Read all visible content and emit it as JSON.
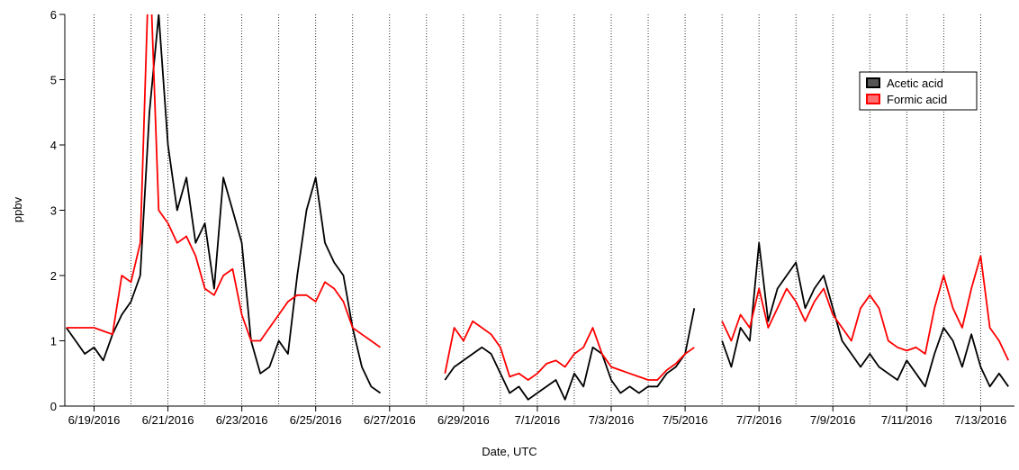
{
  "chart_data": {
    "type": "line",
    "xlabel": "Date, UTC",
    "ylabel": "ppbv",
    "x": [
      "2016-06-18T06:00",
      "2016-06-18T12:00",
      "2016-06-18T18:00",
      "2016-06-19T00:00",
      "2016-06-19T06:00",
      "2016-06-19T12:00",
      "2016-06-19T18:00",
      "2016-06-20T00:00",
      "2016-06-20T06:00",
      "2016-06-20T12:00",
      "2016-06-20T18:00",
      "2016-06-21T00:00",
      "2016-06-21T06:00",
      "2016-06-21T12:00",
      "2016-06-21T18:00",
      "2016-06-22T00:00",
      "2016-06-22T06:00",
      "2016-06-22T12:00",
      "2016-06-22T18:00",
      "2016-06-23T00:00",
      "2016-06-23T06:00",
      "2016-06-23T12:00",
      "2016-06-23T18:00",
      "2016-06-24T00:00",
      "2016-06-24T06:00",
      "2016-06-24T12:00",
      "2016-06-24T18:00",
      "2016-06-25T00:00",
      "2016-06-25T06:00",
      "2016-06-25T12:00",
      "2016-06-25T18:00",
      "2016-06-26T00:00",
      "2016-06-26T06:00",
      "2016-06-26T12:00",
      "2016-06-26T18:00",
      "2016-06-27T00:00",
      "2016-06-27T06:00",
      "2016-06-27T12:00",
      "2016-06-27T18:00",
      "2016-06-28T00:00",
      "2016-06-28T06:00",
      "2016-06-28T12:00",
      "2016-06-28T18:00",
      "2016-06-29T00:00",
      "2016-06-29T06:00",
      "2016-06-29T12:00",
      "2016-06-29T18:00",
      "2016-06-30T00:00",
      "2016-06-30T06:00",
      "2016-06-30T12:00",
      "2016-06-30T18:00",
      "2016-07-01T00:00",
      "2016-07-01T06:00",
      "2016-07-01T12:00",
      "2016-07-01T18:00",
      "2016-07-02T00:00",
      "2016-07-02T06:00",
      "2016-07-02T12:00",
      "2016-07-02T18:00",
      "2016-07-03T00:00",
      "2016-07-03T06:00",
      "2016-07-03T12:00",
      "2016-07-03T18:00",
      "2016-07-04T00:00",
      "2016-07-04T06:00",
      "2016-07-04T12:00",
      "2016-07-04T18:00",
      "2016-07-05T00:00",
      "2016-07-05T06:00",
      "2016-07-05T12:00",
      "2016-07-05T18:00",
      "2016-07-06T00:00",
      "2016-07-06T06:00",
      "2016-07-06T12:00",
      "2016-07-06T18:00",
      "2016-07-07T00:00",
      "2016-07-07T06:00",
      "2016-07-07T12:00",
      "2016-07-07T18:00",
      "2016-07-08T00:00",
      "2016-07-08T06:00",
      "2016-07-08T12:00",
      "2016-07-08T18:00",
      "2016-07-09T00:00",
      "2016-07-09T06:00",
      "2016-07-09T12:00",
      "2016-07-09T18:00",
      "2016-07-10T00:00",
      "2016-07-10T06:00",
      "2016-07-10T12:00",
      "2016-07-10T18:00",
      "2016-07-11T00:00",
      "2016-07-11T06:00",
      "2016-07-11T12:00",
      "2016-07-11T18:00",
      "2016-07-12T00:00",
      "2016-07-12T06:00",
      "2016-07-12T12:00",
      "2016-07-12T18:00",
      "2016-07-13T00:00",
      "2016-07-13T06:00",
      "2016-07-13T12:00",
      "2016-07-13T18:00"
    ],
    "series": [
      {
        "name": "Acetic acid",
        "color": "#000000",
        "legend_color": "#555555",
        "values": [
          1.2,
          1.0,
          0.8,
          0.9,
          0.7,
          1.1,
          1.4,
          1.6,
          2.0,
          4.5,
          6.0,
          4.0,
          3.0,
          3.5,
          2.5,
          2.8,
          1.8,
          3.5,
          3.0,
          2.5,
          1.0,
          0.5,
          0.6,
          1.0,
          0.8,
          2.0,
          3.0,
          3.5,
          2.5,
          2.2,
          2.0,
          1.2,
          0.6,
          0.3,
          0.2,
          null,
          null,
          null,
          null,
          null,
          null,
          0.4,
          0.6,
          0.7,
          0.8,
          0.9,
          0.8,
          0.5,
          0.2,
          0.3,
          0.1,
          0.2,
          0.3,
          0.4,
          0.1,
          0.5,
          0.3,
          0.9,
          0.8,
          0.4,
          0.2,
          0.3,
          0.2,
          0.3,
          0.3,
          0.5,
          0.6,
          0.8,
          1.5,
          null,
          null,
          1.0,
          0.6,
          1.2,
          1.0,
          2.5,
          1.3,
          1.8,
          2.0,
          2.2,
          1.5,
          1.8,
          2.0,
          1.5,
          1.0,
          0.8,
          0.6,
          0.8,
          0.6,
          0.5,
          0.4,
          0.7,
          0.5,
          0.3,
          0.8,
          1.2,
          1.0,
          0.6,
          1.1,
          0.6,
          0.3,
          0.5,
          0.3
        ]
      },
      {
        "name": "Formic acid",
        "color": "#ff0000",
        "legend_color": "#ff7070",
        "values": [
          1.2,
          1.2,
          1.2,
          1.2,
          1.15,
          1.1,
          2.0,
          1.9,
          2.5,
          7.0,
          3.0,
          2.8,
          2.5,
          2.6,
          2.3,
          1.8,
          1.7,
          2.0,
          2.1,
          1.4,
          1.0,
          1.0,
          1.2,
          1.4,
          1.6,
          1.7,
          1.7,
          1.6,
          1.9,
          1.8,
          1.6,
          1.2,
          1.1,
          1.0,
          0.9,
          null,
          null,
          null,
          null,
          null,
          null,
          0.5,
          1.2,
          1.0,
          1.3,
          1.2,
          1.1,
          0.9,
          0.45,
          0.5,
          0.4,
          0.5,
          0.65,
          0.7,
          0.6,
          0.8,
          0.9,
          1.2,
          0.8,
          0.6,
          0.55,
          0.5,
          0.45,
          0.4,
          0.4,
          0.55,
          0.65,
          0.8,
          0.9,
          null,
          null,
          1.3,
          1.0,
          1.4,
          1.2,
          1.8,
          1.2,
          1.5,
          1.8,
          1.6,
          1.3,
          1.6,
          1.8,
          1.4,
          1.2,
          1.0,
          1.5,
          1.7,
          1.5,
          1.0,
          0.9,
          0.85,
          0.9,
          0.8,
          1.5,
          2.0,
          1.5,
          1.2,
          1.8,
          2.3,
          1.2,
          1.0,
          0.7
        ]
      }
    ],
    "xlim": [
      "2016-06-18T05:00",
      "2016-07-13T22:00"
    ],
    "xticks": [
      {
        "value": "2016-06-19",
        "label": "6/19/2016"
      },
      {
        "value": "2016-06-21",
        "label": "6/21/2016"
      },
      {
        "value": "2016-06-23",
        "label": "6/23/2016"
      },
      {
        "value": "2016-06-25",
        "label": "6/25/2016"
      },
      {
        "value": "2016-06-27",
        "label": "6/27/2016"
      },
      {
        "value": "2016-06-29",
        "label": "6/29/2016"
      },
      {
        "value": "2016-07-01",
        "label": "7/1/2016"
      },
      {
        "value": "2016-07-03",
        "label": "7/3/2016"
      },
      {
        "value": "2016-07-05",
        "label": "7/5/2016"
      },
      {
        "value": "2016-07-07",
        "label": "7/7/2016"
      },
      {
        "value": "2016-07-09",
        "label": "7/9/2016"
      },
      {
        "value": "2016-07-11",
        "label": "7/11/2016"
      },
      {
        "value": "2016-07-13",
        "label": "7/13/2016"
      }
    ],
    "xgrid": [
      "2016-06-20",
      "2016-06-22",
      "2016-06-24",
      "2016-06-26",
      "2016-06-28",
      "2016-06-30",
      "2016-07-02",
      "2016-07-04",
      "2016-07-06",
      "2016-07-08",
      "2016-07-10",
      "2016-07-12"
    ],
    "ylim": [
      0,
      6
    ],
    "yticks": [
      0,
      1,
      2,
      3,
      4,
      5,
      6
    ],
    "legend": "upper right"
  }
}
